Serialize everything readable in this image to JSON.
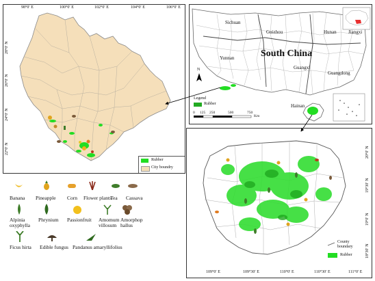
{
  "yunnan_map": {
    "lon_ticks": [
      "98°0′ E",
      "100°0′ E",
      "102°0′ E",
      "104°0′ E",
      "106°0′ E"
    ],
    "lat_ticks": [
      "28°0′ N",
      "26°0′ N",
      "24°0′ N",
      "22°0′ N"
    ],
    "legend": [
      {
        "label": "Rubber",
        "color": "#22dd22"
      },
      {
        "label": "City boundry",
        "color": "#f5dfba"
      }
    ],
    "fill_color": "#f5dfba"
  },
  "south_china_map": {
    "title": "South China",
    "provinces": [
      "Sichuan",
      "Guizhou",
      "Hunan",
      "Jiangxi",
      "Yunnan",
      "Guangxi",
      "Guangdong",
      "Hainan"
    ],
    "legend_title": "Legend",
    "legend_item": "Rubber",
    "scale_labels": [
      "0",
      "125",
      "250",
      "500",
      "750"
    ],
    "scale_unit": "Km",
    "north_label": "N"
  },
  "hainan_map": {
    "lon_ticks": [
      "109°0′ E",
      "109°30′ E",
      "110°0′ E",
      "110°30′ E",
      "111°0′ E"
    ],
    "lat_ticks": [
      "20°0′ N",
      "19°30′ N",
      "19°0′ N",
      "18°30′ N"
    ],
    "legend": [
      {
        "label": "County boundary",
        "color": "#555555"
      },
      {
        "label": "Rubber",
        "color": "#22dd22"
      }
    ]
  },
  "crop_legend": [
    {
      "label": "Banana",
      "icon": "banana-icon"
    },
    {
      "label": "Pineapple",
      "icon": "pineapple-icon"
    },
    {
      "label": "Corn",
      "icon": "corn-icon"
    },
    {
      "label": "Flower plants",
      "icon": "flower-plants-icon"
    },
    {
      "label": "Tea",
      "icon": "tea-icon"
    },
    {
      "label": "Cassava",
      "icon": "cassava-icon"
    },
    {
      "label": "Alpinia oxyphylla",
      "icon": "alpinia-icon"
    },
    {
      "label": "Phrynium",
      "icon": "phrynium-icon"
    },
    {
      "label": "Passionfruit",
      "icon": "passionfruit-icon"
    },
    {
      "label": "Amomum villosum",
      "icon": "amomum-icon"
    },
    {
      "label": "Amorphop hallus",
      "icon": "amorphophallus-icon"
    },
    {
      "label": "Ficus hirta",
      "icon": "ficus-hirta-icon"
    },
    {
      "label": "Edible fungus",
      "icon": "edible-fungus-icon"
    },
    {
      "label": "Pandanus amaryllifolius",
      "icon": "pandanus-icon"
    }
  ]
}
